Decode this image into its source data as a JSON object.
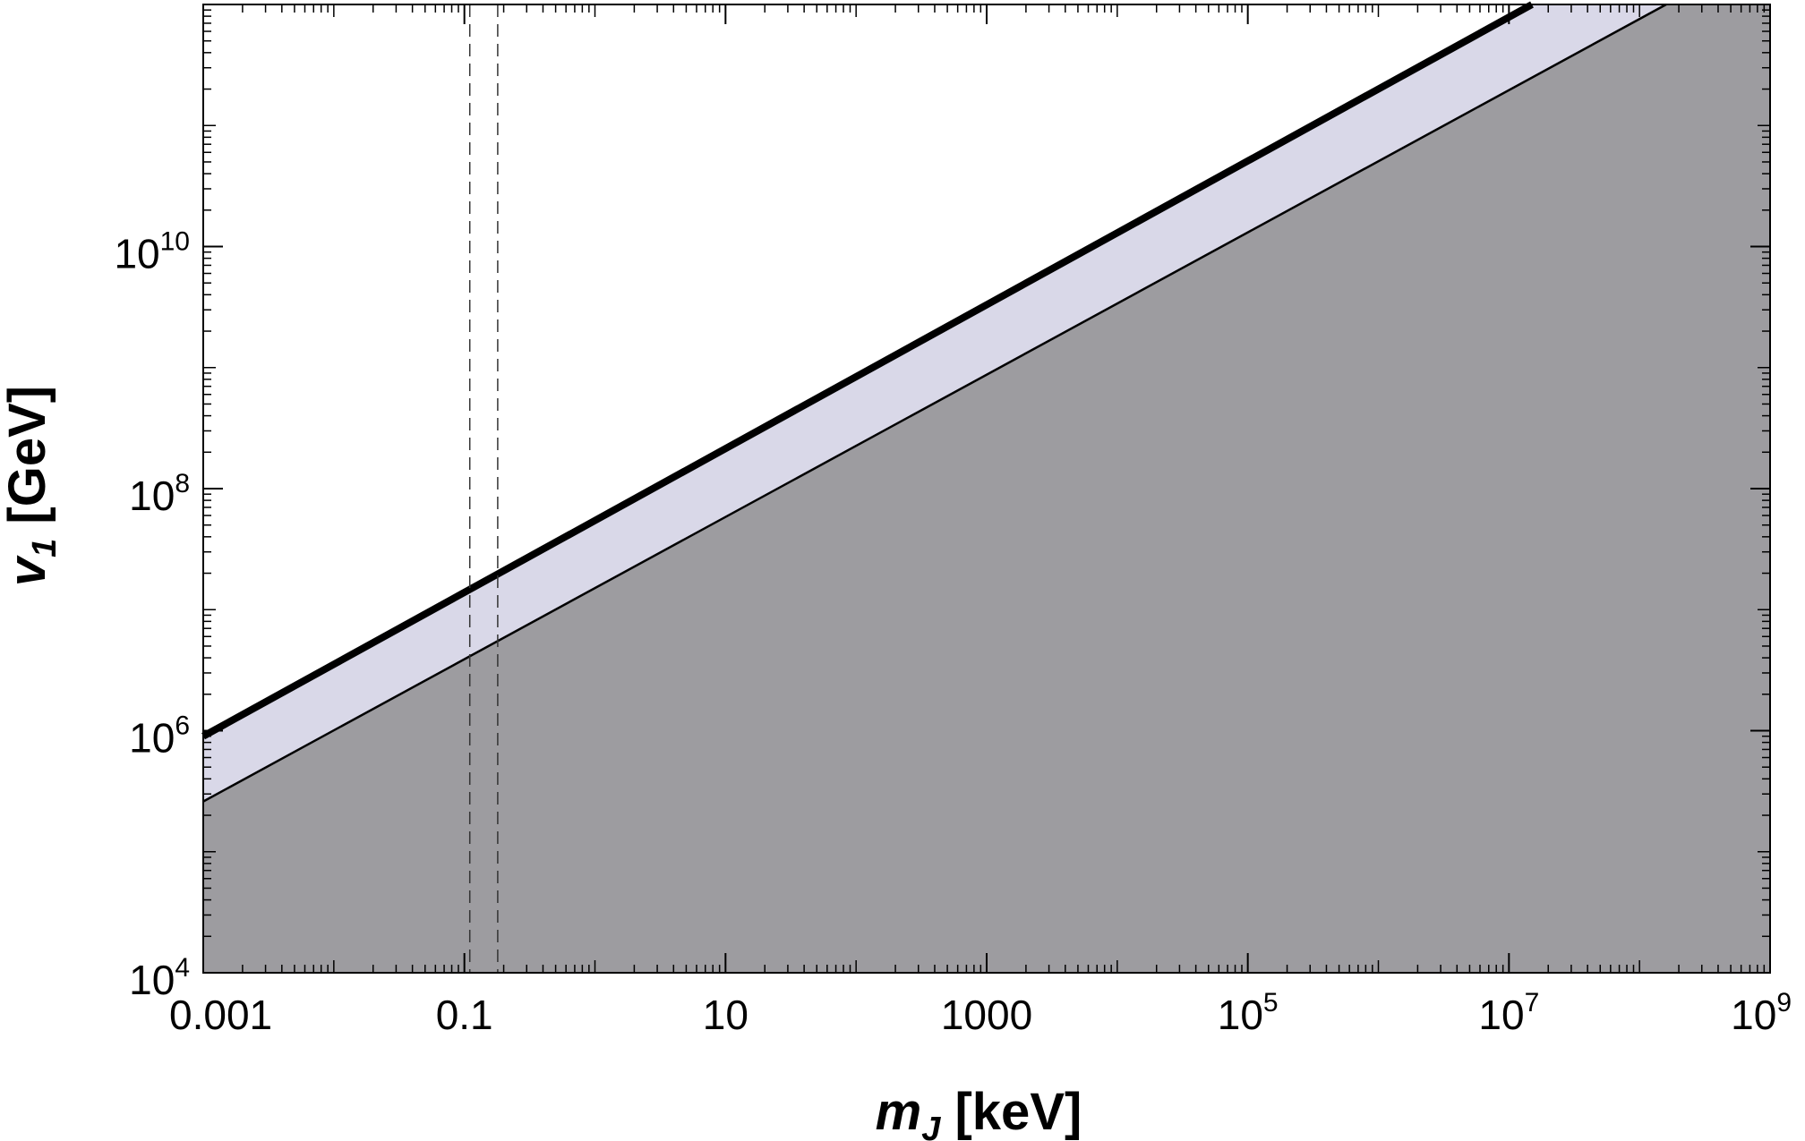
{
  "chart_data": {
    "type": "area",
    "x_scale": "log",
    "y_scale": "log",
    "xlim": [
      0.001,
      1000000000
    ],
    "ylim": [
      10000,
      1000000000000
    ],
    "grid": false,
    "x_ticks": [
      {
        "value": 0.001,
        "base": "0.001",
        "exp": ""
      },
      {
        "value": 0.1,
        "base": "0.1",
        "exp": ""
      },
      {
        "value": 10,
        "base": "10",
        "exp": ""
      },
      {
        "value": 1000,
        "base": "1000",
        "exp": ""
      },
      {
        "value": 100000,
        "base": "10",
        "exp": "5"
      },
      {
        "value": 10000000,
        "base": "10",
        "exp": "7"
      },
      {
        "value": 1000000000,
        "base": "10",
        "exp": "9"
      }
    ],
    "y_ticks": [
      {
        "value": 10000,
        "base": "10",
        "exp": "4"
      },
      {
        "value": 1000000,
        "base": "10",
        "exp": "6"
      },
      {
        "value": 100000000,
        "base": "10",
        "exp": "8"
      },
      {
        "value": 10000000000,
        "base": "10",
        "exp": "10"
      }
    ],
    "xlabel": {
      "var": "m",
      "sub": "J",
      "unit": " [keV]"
    },
    "ylabel": {
      "var": "v",
      "sub": "1",
      "unit": " [GeV]"
    },
    "series": [
      {
        "style": "thick-line",
        "color": "#000000",
        "x": [
          0.001,
          15000000
        ],
        "y": [
          900000,
          1000000000000
        ]
      },
      {
        "style": "thin-line",
        "color": "#000000",
        "x": [
          0.001,
          160000000
        ],
        "y": [
          260000,
          1000000000000
        ]
      }
    ],
    "bands": [
      {
        "color": "#d9d8e8",
        "between": "thick-line and thin-line"
      },
      {
        "color": "#9d9ca0",
        "below": "thin-line"
      }
    ],
    "vlines": [
      {
        "x": 0.11,
        "style": "dashed"
      },
      {
        "x": 0.18,
        "style": "dashed"
      }
    ]
  }
}
